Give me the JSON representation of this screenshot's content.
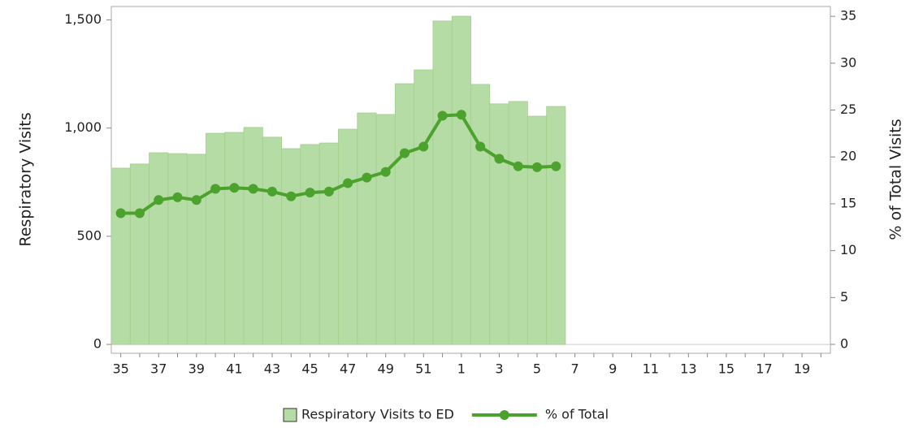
{
  "chart_data": {
    "type": "bar",
    "categories": [
      "35",
      null,
      "37",
      null,
      "39",
      null,
      "41",
      null,
      "43",
      null,
      "45",
      null,
      "47",
      null,
      "49",
      null,
      "51",
      null,
      "1",
      null,
      "3",
      null,
      "5",
      null,
      "7",
      null,
      "9",
      null,
      "11",
      null,
      "13",
      null,
      "15",
      null,
      "17",
      null,
      "19",
      null
    ],
    "series": [
      {
        "name": "Respiratory Visits to ED",
        "type": "bar",
        "color": "#b5dca4",
        "values": [
          815,
          834,
          886,
          882,
          879,
          976,
          980,
          1003,
          958,
          905,
          924,
          931,
          995,
          1070,
          1063,
          1205,
          1269,
          1495,
          1517,
          1202,
          1112,
          1123,
          1055,
          1100,
          null,
          null,
          null,
          null,
          null,
          null,
          null,
          null,
          null,
          null,
          null,
          null,
          null,
          null
        ]
      },
      {
        "name": "% of Total",
        "type": "line",
        "axis": "y2",
        "color": "#4ba22c",
        "values": [
          14.0,
          14.0,
          15.4,
          15.7,
          15.4,
          16.6,
          16.7,
          16.6,
          16.3,
          15.8,
          16.2,
          16.3,
          17.2,
          17.8,
          18.4,
          20.4,
          21.1,
          24.4,
          24.5,
          21.1,
          19.8,
          19.0,
          18.9,
          19.0,
          null,
          null,
          null,
          null,
          null,
          null,
          null,
          null,
          null,
          null,
          null,
          null,
          null,
          null
        ]
      }
    ],
    "ylabel": "Respiratory Visits",
    "y2label": "% of Total Visits",
    "ylim": [
      -41,
      1562
    ],
    "yticks": [
      0,
      500,
      {
        "value": 1000,
        "label": "1,000"
      },
      {
        "value": 1500,
        "label": "1,500"
      }
    ],
    "y2lim": [
      -0.95,
      36.05
    ],
    "y2ticks": [
      0,
      5,
      10,
      15,
      20,
      25,
      30,
      35
    ]
  }
}
